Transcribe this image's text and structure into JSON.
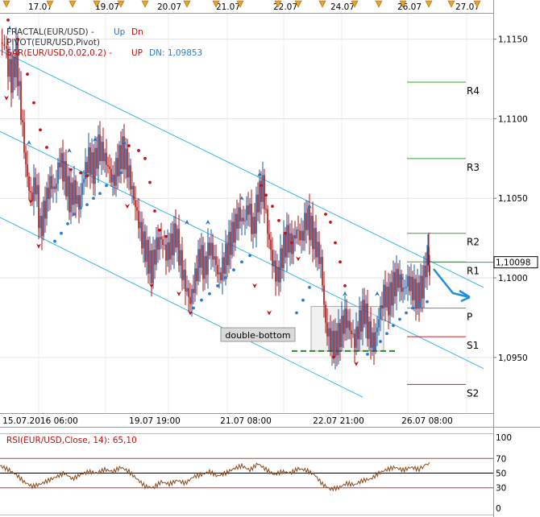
{
  "chart_data": [
    {
      "type": "candlestick",
      "symbol": "EUR/USD",
      "ylim": [
        1.0915,
        1.1166
      ],
      "y_ticks": [
        "1,1150",
        "1,1100",
        "1,1050",
        "1,1000",
        "1,0950"
      ],
      "top_dates": [
        "17.07",
        "19.07",
        "20.07",
        "21.07",
        "22.07",
        "24.07",
        "26.07",
        "27.07"
      ],
      "bottom_dates": [
        "15.07.2016 06:00",
        "19.07 19:00",
        "21.07 08:00",
        "22.07 21:00",
        "26.07 08:00"
      ],
      "legend": {
        "fractal": "FRACTAL(EUR/USD) -",
        "fractal_up": "Up",
        "fractal_dn": "Dn",
        "pivot": "PIVOT(EUR/USD,Pivot)",
        "sar": "SAR(EUR/USD,0.02,0.2) -",
        "sar_up": "UP",
        "sar_dn": "DN: 1,09853"
      },
      "current_price": "1,10098",
      "current_value": 1.10098,
      "pivots": [
        {
          "label": "R4",
          "value": 1.1123,
          "color": "#2ea82e"
        },
        {
          "label": "R3",
          "value": 1.1075,
          "color": "#2ea82e"
        },
        {
          "label": "R2",
          "value": 1.1028,
          "color": "#2ea82e"
        },
        {
          "label": "R1",
          "value": 1.101,
          "color": "#2ea82e"
        },
        {
          "label": "P",
          "value": 1.0981,
          "color": "#808080"
        },
        {
          "label": "S1",
          "value": 1.0963,
          "color": "#cc2222"
        },
        {
          "label": "S2",
          "value": 1.0933,
          "color": "#cc2222"
        }
      ],
      "annotation": "double-bottom",
      "double_bottom_level": 1.0954,
      "channel_upper": [
        [
          0,
          1.1143
        ],
        [
          600,
          1.0994
        ]
      ],
      "channel_middle": [
        [
          0,
          1.1092
        ],
        [
          600,
          1.0943
        ]
      ],
      "channel_lower": [
        [
          0,
          1.1038
        ],
        [
          450,
          1.0925
        ]
      ],
      "colors": {
        "bull": "#1e5aa0",
        "bear": "#b01010",
        "sar_up": "#2a7cd6",
        "sar_dn": "#cc1010",
        "channel": "#33b8e6",
        "forecast_arrow": "#1e8fdc"
      },
      "close_path": [
        [
          0,
          1.1148
        ],
        [
          8,
          1.1138
        ],
        [
          14,
          1.1125
        ],
        [
          20,
          1.114
        ],
        [
          26,
          1.1105
        ],
        [
          32,
          1.107
        ],
        [
          38,
          1.105
        ],
        [
          44,
          1.106
        ],
        [
          50,
          1.103
        ],
        [
          56,
          1.1045
        ],
        [
          62,
          1.106
        ],
        [
          68,
          1.1055
        ],
        [
          74,
          1.1075
        ],
        [
          80,
          1.1065
        ],
        [
          86,
          1.105
        ],
        [
          92,
          1.1055
        ],
        [
          98,
          1.1045
        ],
        [
          104,
          1.1065
        ],
        [
          110,
          1.1075
        ],
        [
          116,
          1.1068
        ],
        [
          122,
          1.1082
        ],
        [
          128,
          1.1078
        ],
        [
          134,
          1.107
        ],
        [
          140,
          1.106
        ],
        [
          146,
          1.1072
        ],
        [
          152,
          1.108
        ],
        [
          158,
          1.107
        ],
        [
          164,
          1.1055
        ],
        [
          170,
          1.104
        ],
        [
          176,
          1.1025
        ],
        [
          182,
          1.1015
        ],
        [
          188,
          1.1005
        ],
        [
          194,
          1.102
        ],
        [
          200,
          1.1025
        ],
        [
          206,
          1.1015
        ],
        [
          212,
          1.102
        ],
        [
          218,
          1.1028
        ],
        [
          224,
          1.101
        ],
        [
          230,
          1.0995
        ],
        [
          236,
          1.0985
        ],
        [
          242,
          1.1
        ],
        [
          248,
          1.1015
        ],
        [
          254,
          1.1005
        ],
        [
          260,
          1.102
        ],
        [
          266,
          1.1012
        ],
        [
          272,
          1.1
        ],
        [
          278,
          1.101
        ],
        [
          284,
          1.102
        ],
        [
          290,
          1.103
        ],
        [
          296,
          1.104
        ],
        [
          302,
          1.1035
        ],
        [
          308,
          1.1045
        ],
        [
          314,
          1.103
        ],
        [
          320,
          1.105
        ],
        [
          326,
          1.1058
        ],
        [
          332,
          1.103
        ],
        [
          338,
          1.101
        ],
        [
          344,
          1.1
        ],
        [
          350,
          1.1015
        ],
        [
          356,
          1.1025
        ],
        [
          362,
          1.102
        ],
        [
          368,
          1.103
        ],
        [
          374,
          1.1025
        ],
        [
          380,
          1.1038
        ],
        [
          386,
          1.103
        ],
        [
          392,
          1.102
        ],
        [
          398,
          1.101
        ],
        [
          404,
          1.097
        ],
        [
          410,
          1.096
        ],
        [
          416,
          1.0958
        ],
        [
          422,
          1.0965
        ],
        [
          428,
          1.0975
        ],
        [
          434,
          1.0968
        ],
        [
          440,
          1.096
        ],
        [
          446,
          1.0972
        ],
        [
          452,
          1.098
        ],
        [
          458,
          1.0965
        ],
        [
          464,
          1.0958
        ],
        [
          470,
          1.0975
        ],
        [
          476,
          1.099
        ],
        [
          482,
          1.0985
        ],
        [
          488,
          1.0995
        ],
        [
          494,
          1.1
        ],
        [
          500,
          1.0992
        ],
        [
          506,
          1.0998
        ],
        [
          512,
          1.0993
        ],
        [
          518,
          1.0988
        ],
        [
          524,
          1.0995
        ],
        [
          530,
          1.1012
        ],
        [
          533,
          1.101
        ]
      ],
      "sar_dn_points": [
        [
          10,
          1.1162
        ],
        [
          22,
          1.115
        ],
        [
          34,
          1.1128
        ],
        [
          42,
          1.111
        ],
        [
          50,
          1.1093
        ],
        [
          58,
          1.1082
        ],
        [
          88,
          1.1068
        ],
        [
          100,
          1.1066
        ],
        [
          108,
          1.1064
        ],
        [
          160,
          1.1083
        ],
        [
          172,
          1.108
        ],
        [
          180,
          1.1075
        ],
        [
          186,
          1.106
        ],
        [
          192,
          1.1042
        ],
        [
          198,
          1.103
        ],
        [
          206,
          1.1026
        ],
        [
          324,
          1.1058
        ],
        [
          330,
          1.1052
        ],
        [
          338,
          1.1045
        ],
        [
          346,
          1.1036
        ],
        [
          354,
          1.1028
        ],
        [
          362,
          1.1022
        ],
        [
          404,
          1.104
        ],
        [
          410,
          1.1035
        ],
        [
          416,
          1.1022
        ],
        [
          422,
          1.101
        ],
        [
          428,
          1.0995
        ]
      ],
      "sar_up_points": [
        [
          68,
          1.1023
        ],
        [
          76,
          1.1028
        ],
        [
          84,
          1.1034
        ],
        [
          92,
          1.104
        ],
        [
          100,
          1.1044
        ],
        [
          108,
          1.1046
        ],
        [
          116,
          1.105
        ],
        [
          124,
          1.1053
        ],
        [
          132,
          1.1058
        ],
        [
          140,
          1.1062
        ],
        [
          150,
          1.1066
        ],
        [
          240,
          1.0981
        ],
        [
          250,
          1.0986
        ],
        [
          260,
          1.099
        ],
        [
          270,
          1.0995
        ],
        [
          280,
          1.1
        ],
        [
          290,
          1.1005
        ],
        [
          300,
          1.101
        ],
        [
          310,
          1.1014
        ],
        [
          368,
          1.0978
        ],
        [
          376,
          1.0986
        ],
        [
          384,
          1.0994
        ],
        [
          456,
          1.0952
        ],
        [
          464,
          1.0956
        ],
        [
          472,
          1.096
        ],
        [
          480,
          1.0965
        ],
        [
          488,
          1.097
        ],
        [
          496,
          1.0974
        ],
        [
          504,
          1.0978
        ],
        [
          512,
          1.0981
        ],
        [
          520,
          1.0983
        ],
        [
          530,
          1.0985
        ]
      ],
      "fractal_up_points": [
        [
          12,
          1.1157
        ],
        [
          36,
          1.1085
        ],
        [
          86,
          1.108
        ],
        [
          118,
          1.1087
        ],
        [
          154,
          1.1085
        ],
        [
          232,
          1.1035
        ],
        [
          258,
          1.1035
        ],
        [
          300,
          1.105
        ],
        [
          322,
          1.1065
        ],
        [
          384,
          1.1045
        ],
        [
          428,
          1.099
        ],
        [
          468,
          1.099
        ],
        [
          498,
          1.1
        ]
      ],
      "fractal_dn_points": [
        [
          8,
          1.1113
        ],
        [
          38,
          1.1048
        ],
        [
          48,
          1.102
        ],
        [
          158,
          1.1045
        ],
        [
          188,
          1.0995
        ],
        [
          222,
          1.099
        ],
        [
          236,
          1.0978
        ],
        [
          316,
          1.0995
        ],
        [
          334,
          1.0978
        ],
        [
          370,
          1.1012
        ],
        [
          414,
          1.095
        ],
        [
          442,
          1.0946
        ]
      ]
    },
    {
      "type": "line",
      "legend": "RSI(EUR/USD,Close, 14): 65,10",
      "ylim": [
        0,
        100
      ],
      "y_ticks": [
        "100",
        "70",
        "50",
        "30",
        "0"
      ],
      "levels": [
        70,
        50,
        30
      ],
      "rsi": [
        [
          0,
          60
        ],
        [
          10,
          55
        ],
        [
          20,
          48
        ],
        [
          30,
          38
        ],
        [
          40,
          32
        ],
        [
          50,
          35
        ],
        [
          60,
          40
        ],
        [
          70,
          45
        ],
        [
          80,
          50
        ],
        [
          90,
          42
        ],
        [
          100,
          48
        ],
        [
          110,
          52
        ],
        [
          120,
          50
        ],
        [
          130,
          55
        ],
        [
          140,
          52
        ],
        [
          150,
          58
        ],
        [
          160,
          52
        ],
        [
          170,
          42
        ],
        [
          180,
          32
        ],
        [
          190,
          30
        ],
        [
          200,
          38
        ],
        [
          210,
          35
        ],
        [
          220,
          40
        ],
        [
          230,
          36
        ],
        [
          240,
          45
        ],
        [
          250,
          48
        ],
        [
          260,
          52
        ],
        [
          270,
          46
        ],
        [
          280,
          50
        ],
        [
          290,
          56
        ],
        [
          300,
          60
        ],
        [
          310,
          54
        ],
        [
          320,
          63
        ],
        [
          330,
          55
        ],
        [
          340,
          48
        ],
        [
          350,
          52
        ],
        [
          360,
          50
        ],
        [
          370,
          56
        ],
        [
          380,
          54
        ],
        [
          390,
          48
        ],
        [
          400,
          35
        ],
        [
          410,
          28
        ],
        [
          420,
          30
        ],
        [
          430,
          36
        ],
        [
          440,
          34
        ],
        [
          450,
          40
        ],
        [
          460,
          42
        ],
        [
          470,
          50
        ],
        [
          480,
          55
        ],
        [
          490,
          58
        ],
        [
          500,
          54
        ],
        [
          510,
          58
        ],
        [
          520,
          55
        ],
        [
          533,
          65
        ]
      ]
    }
  ]
}
